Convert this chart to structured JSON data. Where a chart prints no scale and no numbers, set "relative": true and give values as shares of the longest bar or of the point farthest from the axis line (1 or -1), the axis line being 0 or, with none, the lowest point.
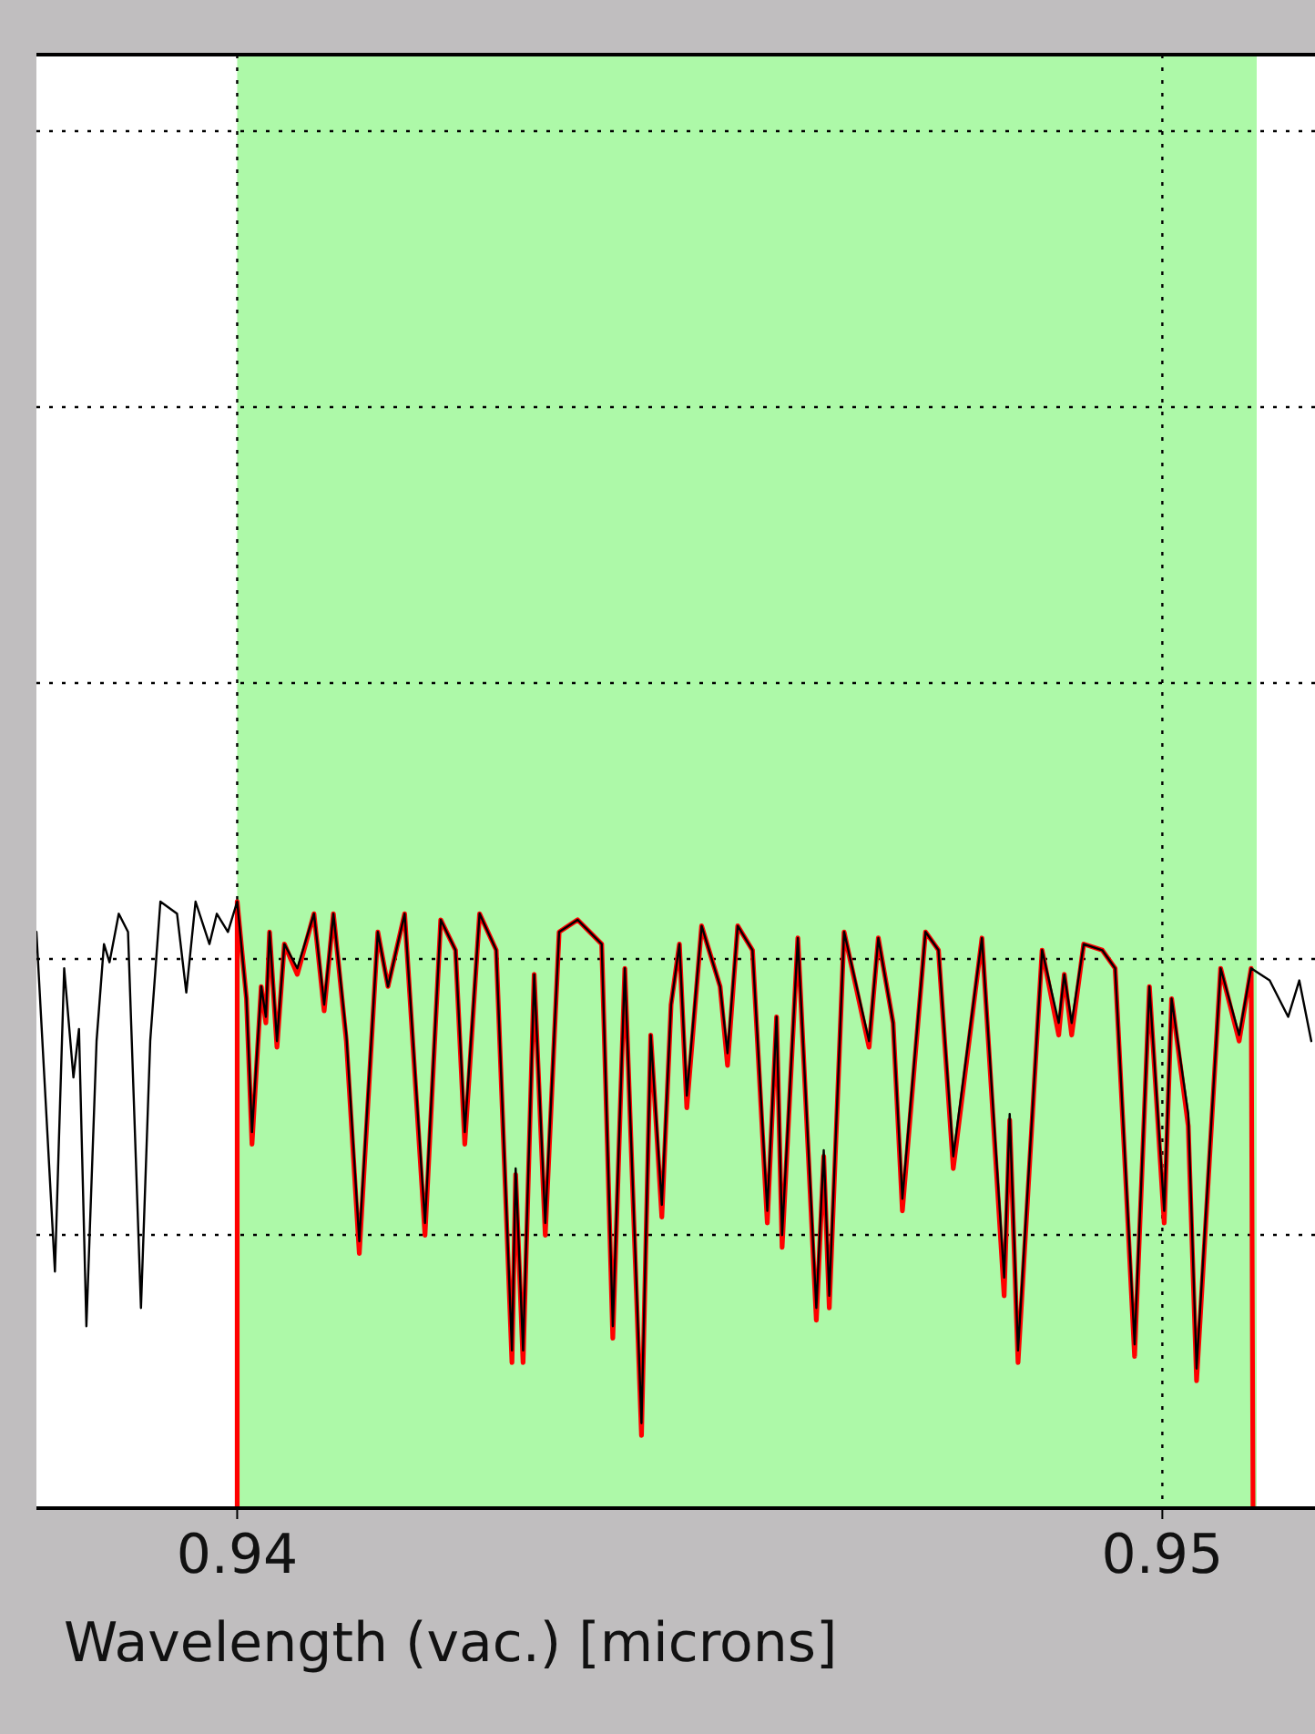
{
  "chart_data": {
    "type": "line",
    "xlabel": "Wavelength (vac.) [microns]",
    "relative": true,
    "xlim": [
      0.93783,
      0.95165
    ],
    "xticks": [
      0.94,
      0.95
    ],
    "grid": true,
    "bands": [
      {
        "axis": "x",
        "from": 0.94,
        "to": 0.95102,
        "color": "#adf9a8"
      }
    ],
    "series": [
      {
        "color": "#ff0000",
        "x": [
          0.94,
          0.94,
          0.9401,
          0.94016,
          0.94026,
          0.94031,
          0.94035,
          0.94043,
          0.94051,
          0.94065,
          0.94083,
          0.94094,
          0.94104,
          0.94118,
          0.94132,
          0.94152,
          0.94163,
          0.94181,
          0.94203,
          0.9422,
          0.94236,
          0.94246,
          0.94262,
          0.9428,
          0.94297,
          0.94301,
          0.94309,
          0.94321,
          0.94333,
          0.94348,
          0.94368,
          0.94394,
          0.94406,
          0.94419,
          0.94437,
          0.94447,
          0.94459,
          0.94469,
          0.94478,
          0.94486,
          0.94502,
          0.94522,
          0.9453,
          0.94541,
          0.94557,
          0.94573,
          0.94583,
          0.94589,
          0.94606,
          0.94626,
          0.94634,
          0.9464,
          0.94656,
          0.94683,
          0.94693,
          0.94709,
          0.94719,
          0.94744,
          0.94758,
          0.94774,
          0.94805,
          0.94829,
          0.94835,
          0.94844,
          0.9487,
          0.94888,
          0.94894,
          0.94902,
          0.94915,
          0.94935,
          0.94949,
          0.9497,
          0.94986,
          0.95002,
          0.9501,
          0.95028,
          0.95037,
          0.95063,
          0.95083,
          0.95096,
          0.95098
        ],
        "values": [
          0,
          1,
          0.84,
          0.6,
          0.86,
          0.8,
          0.95,
          0.76,
          0.93,
          0.88,
          0.98,
          0.82,
          0.98,
          0.77,
          0.42,
          0.95,
          0.86,
          0.98,
          0.45,
          0.97,
          0.92,
          0.6,
          0.98,
          0.92,
          0.24,
          0.55,
          0.24,
          0.88,
          0.45,
          0.95,
          0.97,
          0.93,
          0.28,
          0.89,
          0.12,
          0.78,
          0.48,
          0.83,
          0.93,
          0.66,
          0.96,
          0.86,
          0.73,
          0.96,
          0.92,
          0.47,
          0.81,
          0.43,
          0.94,
          0.31,
          0.58,
          0.33,
          0.95,
          0.76,
          0.94,
          0.8,
          0.49,
          0.95,
          0.92,
          0.56,
          0.94,
          0.35,
          0.64,
          0.24,
          0.92,
          0.78,
          0.88,
          0.78,
          0.93,
          0.92,
          0.89,
          0.25,
          0.86,
          0.47,
          0.84,
          0.63,
          0.21,
          0.89,
          0.77,
          0.89,
          0
        ]
      },
      {
        "color": "#000000",
        "x": [
          0.93783,
          0.93803,
          0.93813,
          0.93823,
          0.93829,
          0.93837,
          0.93848,
          0.93856,
          0.93862,
          0.93872,
          0.93882,
          0.93896,
          0.93906,
          0.93917,
          0.93935,
          0.93945,
          0.93955,
          0.9397,
          0.93978,
          0.9399,
          0.94,
          0.9401,
          0.94016,
          0.94026,
          0.94031,
          0.94035,
          0.94043,
          0.94051,
          0.94065,
          0.94083,
          0.94094,
          0.94104,
          0.94118,
          0.94132,
          0.94152,
          0.94163,
          0.94181,
          0.94203,
          0.9422,
          0.94236,
          0.94246,
          0.94262,
          0.9428,
          0.94297,
          0.94301,
          0.94309,
          0.94321,
          0.94333,
          0.94348,
          0.94368,
          0.94394,
          0.94406,
          0.94419,
          0.94437,
          0.94447,
          0.94459,
          0.94469,
          0.94478,
          0.94486,
          0.94502,
          0.94522,
          0.9453,
          0.94541,
          0.94557,
          0.94573,
          0.94583,
          0.94589,
          0.94606,
          0.94626,
          0.94634,
          0.9464,
          0.94656,
          0.94683,
          0.94693,
          0.94709,
          0.94719,
          0.94744,
          0.94758,
          0.94774,
          0.94805,
          0.94829,
          0.94835,
          0.94844,
          0.9487,
          0.94888,
          0.94894,
          0.94902,
          0.94915,
          0.94935,
          0.94949,
          0.9497,
          0.94986,
          0.95002,
          0.9501,
          0.95028,
          0.95037,
          0.95063,
          0.95083,
          0.95096,
          0.95116,
          0.95136,
          0.95148,
          0.95161
        ],
        "values": [
          0.95,
          0.39,
          0.89,
          0.71,
          0.79,
          0.3,
          0.77,
          0.93,
          0.9,
          0.98,
          0.95,
          0.33,
          0.77,
          1,
          0.98,
          0.85,
          1,
          0.93,
          0.98,
          0.95,
          1,
          0.84,
          0.62,
          0.86,
          0.81,
          0.95,
          0.77,
          0.93,
          0.89,
          0.98,
          0.83,
          0.98,
          0.78,
          0.44,
          0.95,
          0.86,
          0.98,
          0.47,
          0.97,
          0.92,
          0.62,
          0.98,
          0.92,
          0.26,
          0.56,
          0.26,
          0.88,
          0.47,
          0.95,
          0.97,
          0.93,
          0.3,
          0.89,
          0.14,
          0.78,
          0.5,
          0.83,
          0.93,
          0.68,
          0.96,
          0.86,
          0.75,
          0.96,
          0.92,
          0.49,
          0.81,
          0.45,
          0.94,
          0.33,
          0.59,
          0.35,
          0.95,
          0.77,
          0.94,
          0.8,
          0.51,
          0.95,
          0.92,
          0.58,
          0.94,
          0.38,
          0.65,
          0.26,
          0.92,
          0.8,
          0.88,
          0.8,
          0.93,
          0.92,
          0.89,
          0.27,
          0.86,
          0.49,
          0.84,
          0.65,
          0.23,
          0.89,
          0.78,
          0.89,
          0.87,
          0.81,
          0.87,
          0.77
        ]
      }
    ]
  }
}
